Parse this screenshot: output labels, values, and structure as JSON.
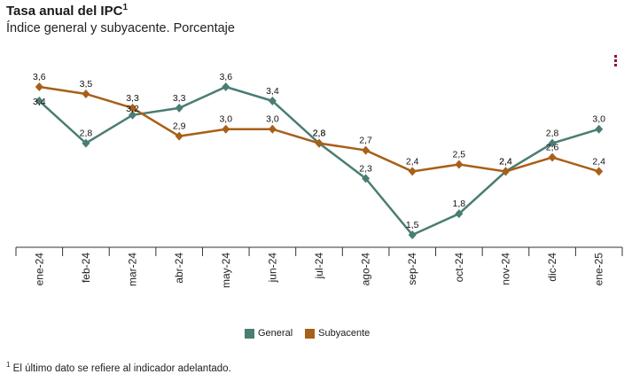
{
  "title": "Tasa anual del IPC",
  "title_sup": "1",
  "subtitle": "Índice general y subyacente. Porcentaje",
  "menu_icon": "vertical-dots-icon",
  "footnote": {
    "marker": "1",
    "text": " El último dato se refiere al indicador adelantado."
  },
  "chart_data": {
    "type": "line",
    "title": "Tasa anual del IPC",
    "subtitle": "Índice general y subyacente. Porcentaje",
    "categories": [
      "ene-24",
      "feb-24",
      "mar-24",
      "abr-24",
      "may-24",
      "jun-24",
      "jul-24",
      "ago-24",
      "sep-24",
      "oct-24",
      "nov-24",
      "dic-24",
      "ene-25"
    ],
    "series": [
      {
        "name": "General",
        "color": "#4a7d73",
        "values": [
          3.4,
          2.8,
          3.2,
          3.3,
          3.6,
          3.4,
          2.8,
          2.3,
          1.5,
          1.8,
          2.4,
          2.8,
          3.0
        ],
        "labels": [
          "3,4",
          "2,8",
          "3,2",
          "3,3",
          "3,6",
          "3,4",
          "2,8",
          "2,3",
          "1,5",
          "1,8",
          "2,4",
          "2,8",
          "3,0"
        ]
      },
      {
        "name": "Subyacente",
        "color": "#a85f18",
        "values": [
          3.6,
          3.5,
          3.3,
          2.9,
          3.0,
          3.0,
          2.8,
          2.7,
          2.4,
          2.5,
          2.4,
          2.6,
          2.4
        ],
        "labels": [
          "3,6",
          "3,5",
          "3,3",
          "2,9",
          "3,0",
          "3,0",
          "2,8",
          "2,7",
          "2,4",
          "2,5",
          "2,4",
          "2,6",
          "2,4"
        ]
      }
    ],
    "xlabel": "",
    "ylabel": "",
    "ylim": [
      1.3,
      3.8
    ],
    "grid": false,
    "legend": "bottom-center"
  }
}
